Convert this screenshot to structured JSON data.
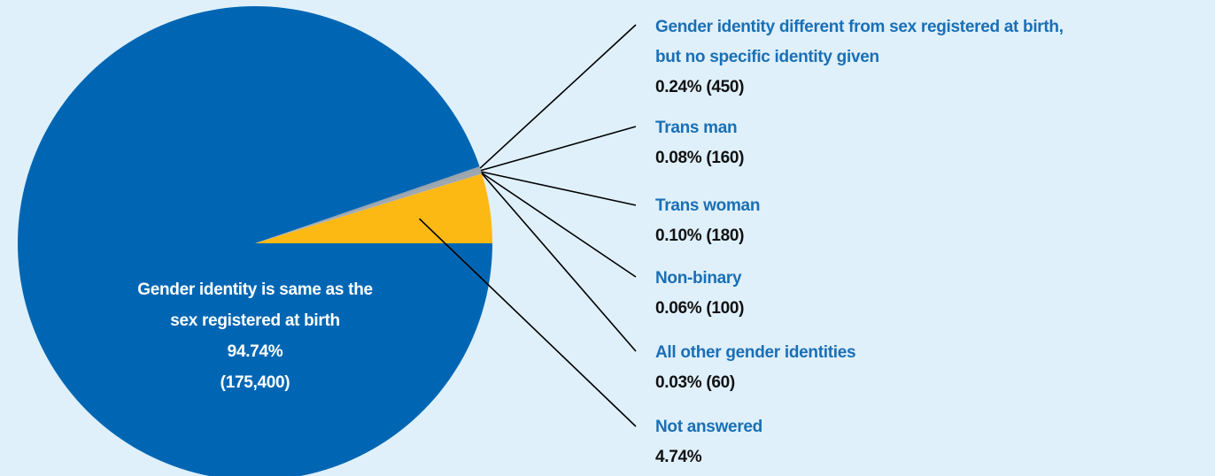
{
  "chart_data": {
    "type": "pie",
    "categories": [
      "Gender identity is same as the\nsex registered at birth",
      "Gender identity different from sex registered at birth,\nbut no specific identity given",
      "Trans man",
      "Trans woman",
      "Non-binary",
      "All other gender identities",
      "Not answered"
    ],
    "values": [
      94.74,
      0.24,
      0.08,
      0.1,
      0.06,
      0.03,
      4.74
    ],
    "value_labels": [
      "94.74%\n(175,400)",
      "0.24% (450)",
      "0.08% (160)",
      "0.10% (180)",
      "0.06% (100)",
      "0.03% (60)",
      "4.74%"
    ],
    "colors": [
      "#0066b3",
      "#9aa3ab",
      "#9aa3ab",
      "#9aa3ab",
      "#9aa3ab",
      "#9aa3ab",
      "#fdb913"
    ]
  }
}
